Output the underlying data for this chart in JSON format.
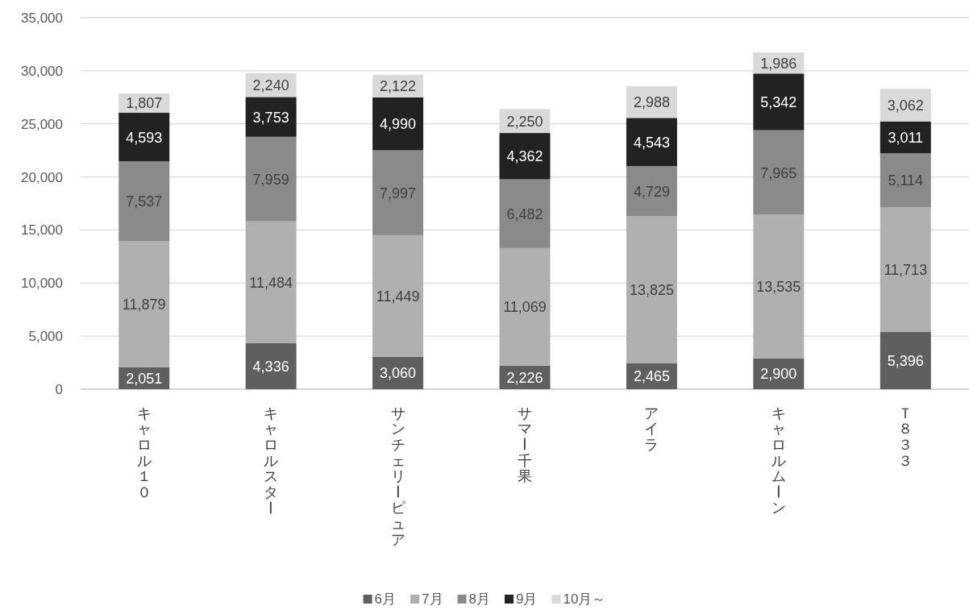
{
  "chart_data": {
    "type": "bar",
    "stacked": true,
    "categories": [
      "キャロル１０",
      "キャロルスター",
      "サンチェリーピュア",
      "サマー千果",
      "アイラ",
      "キャロルムーン",
      "Ｔ８３３"
    ],
    "series": [
      {
        "name": "6月",
        "color": "#5f5f5f",
        "values": [
          2051,
          4336,
          3060,
          2226,
          2465,
          2900,
          5396
        ],
        "value_labels": [
          "2,051",
          "4,336",
          "3,060",
          "2,226",
          "2,465",
          "2,900",
          "5,396"
        ]
      },
      {
        "name": "7月",
        "color": "#b0b0b0",
        "values": [
          11879,
          11484,
          11449,
          11069,
          13825,
          13535,
          11713
        ],
        "value_labels": [
          "11,879",
          "11,484",
          "11,449",
          "11,069",
          "13,825",
          "13,535",
          "11,713"
        ]
      },
      {
        "name": "8月",
        "color": "#8a8a8a",
        "values": [
          7537,
          7959,
          7997,
          6482,
          4729,
          7965,
          5114
        ],
        "value_labels": [
          "7,537",
          "7,959",
          "7,997",
          "6,482",
          "4,729",
          "7,965",
          "5,114"
        ]
      },
      {
        "name": "9月",
        "color": "#222222",
        "values": [
          4593,
          3753,
          4990,
          4362,
          4543,
          5342,
          3011
        ],
        "value_labels": [
          "4,593",
          "3,753",
          "4,990",
          "4,362",
          "4,543",
          "5,342",
          "3,011"
        ]
      },
      {
        "name": "10月～",
        "color": "#d9d9d9",
        "values": [
          1807,
          2240,
          2122,
          2250,
          2988,
          1986,
          3062
        ],
        "value_labels": [
          "1,807",
          "2,240",
          "2,122",
          "2,250",
          "2,988",
          "1,986",
          "3,062"
        ]
      }
    ],
    "ylim": [
      0,
      35000
    ],
    "yticks": [
      0,
      {
        "value": 5000,
        "label": "5,000"
      },
      {
        "value": 10000,
        "label": "10,000"
      },
      {
        "value": 15000,
        "label": "15,000"
      },
      {
        "value": 20000,
        "label": "20,000"
      },
      {
        "value": 25000,
        "label": "25,000"
      },
      {
        "value": 30000,
        "label": "30,000"
      },
      {
        "value": 35000,
        "label": "35,000"
      }
    ],
    "grid": "y",
    "legend": "bottom"
  }
}
